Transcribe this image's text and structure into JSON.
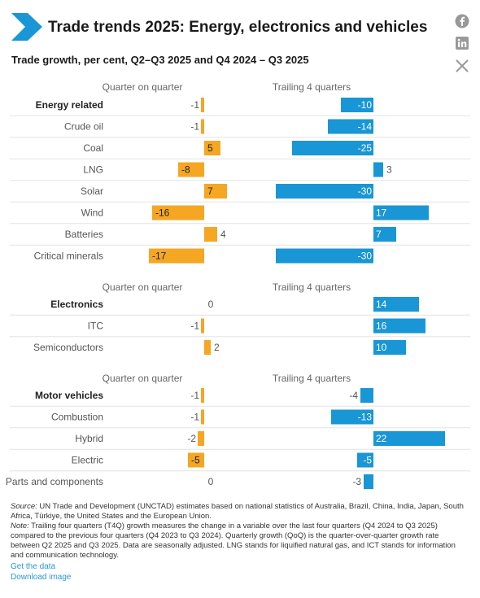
{
  "header": {
    "title": "Trade trends 2025: Energy, electronics and vehicles",
    "subtitle": "Trade growth, per cent, Q2–Q3 2025 and Q4 2024 – Q3 2025",
    "social_icons": [
      "facebook-icon",
      "linkedin-icon",
      "x-icon"
    ]
  },
  "chart_data": {
    "type": "bar",
    "orientation": "horizontal",
    "colors": {
      "quarter_on_quarter": "#f5a623",
      "trailing_4_quarters": "#1996d5"
    },
    "panels": [
      {
        "qoq_header": "Quarter on quarter",
        "t4q_header": "Trailing 4 quarters",
        "rows": [
          {
            "label": "Energy related",
            "bold": true,
            "qoq": -1,
            "t4q": -10
          },
          {
            "label": "Crude oil",
            "bold": false,
            "qoq": -1,
            "t4q": -14
          },
          {
            "label": "Coal",
            "bold": false,
            "qoq": 5,
            "t4q": -25
          },
          {
            "label": "LNG",
            "bold": false,
            "qoq": -8,
            "t4q": 3
          },
          {
            "label": "Solar",
            "bold": false,
            "qoq": 7,
            "t4q": -30
          },
          {
            "label": "Wind",
            "bold": false,
            "qoq": -16,
            "t4q": 17
          },
          {
            "label": "Batteries",
            "bold": false,
            "qoq": 4,
            "t4q": 7
          },
          {
            "label": "Critical minerals",
            "bold": false,
            "qoq": -17,
            "t4q": -30
          }
        ]
      },
      {
        "qoq_header": "Quarter on quarter",
        "t4q_header": "Trailing 4 quarters",
        "rows": [
          {
            "label": "Electronics",
            "bold": true,
            "qoq": 0,
            "t4q": 14
          },
          {
            "label": "ITC",
            "bold": false,
            "qoq": -1,
            "t4q": 16
          },
          {
            "label": "Semiconductors",
            "bold": false,
            "qoq": 2,
            "t4q": 10
          }
        ]
      },
      {
        "qoq_header": "Quarter on quarter",
        "t4q_header": "Trailing 4 quarters",
        "rows": [
          {
            "label": "Motor vehicles",
            "bold": true,
            "qoq": -1,
            "t4q": -4
          },
          {
            "label": "Combustion",
            "bold": false,
            "qoq": -1,
            "t4q": -13
          },
          {
            "label": "Hybrid",
            "bold": false,
            "qoq": -2,
            "t4q": 22
          },
          {
            "label": "Electric",
            "bold": false,
            "qoq": -5,
            "t4q": -5
          },
          {
            "label": "Parts and components",
            "bold": false,
            "qoq": 0,
            "t4q": -3
          }
        ]
      }
    ]
  },
  "footer": {
    "source_label": "Source:",
    "source_text": " UN Trade and Development (UNCTAD) estimates based on national statistics of Australia, Brazil, China, India, Japan, South Africa, Türkiye, the United States and the European Union.",
    "note_label": "Note:",
    "note_text": " Trailing four quarters (T4Q) growth measures the change in a variable over the last four quarters (Q4 2024 to Q3 2025) compared to the previous four quarters (Q4 2023 to Q3 2024). Quarterly growth (QoQ) is the quarter-over-quarter growth rate between Q2 2025 and Q3 2025. Data are seasonally adjusted. LNG stands for liquified natural gas, and ICT stands for information and communication technology.",
    "get_data": "Get the data",
    "download_image": "Download image"
  }
}
